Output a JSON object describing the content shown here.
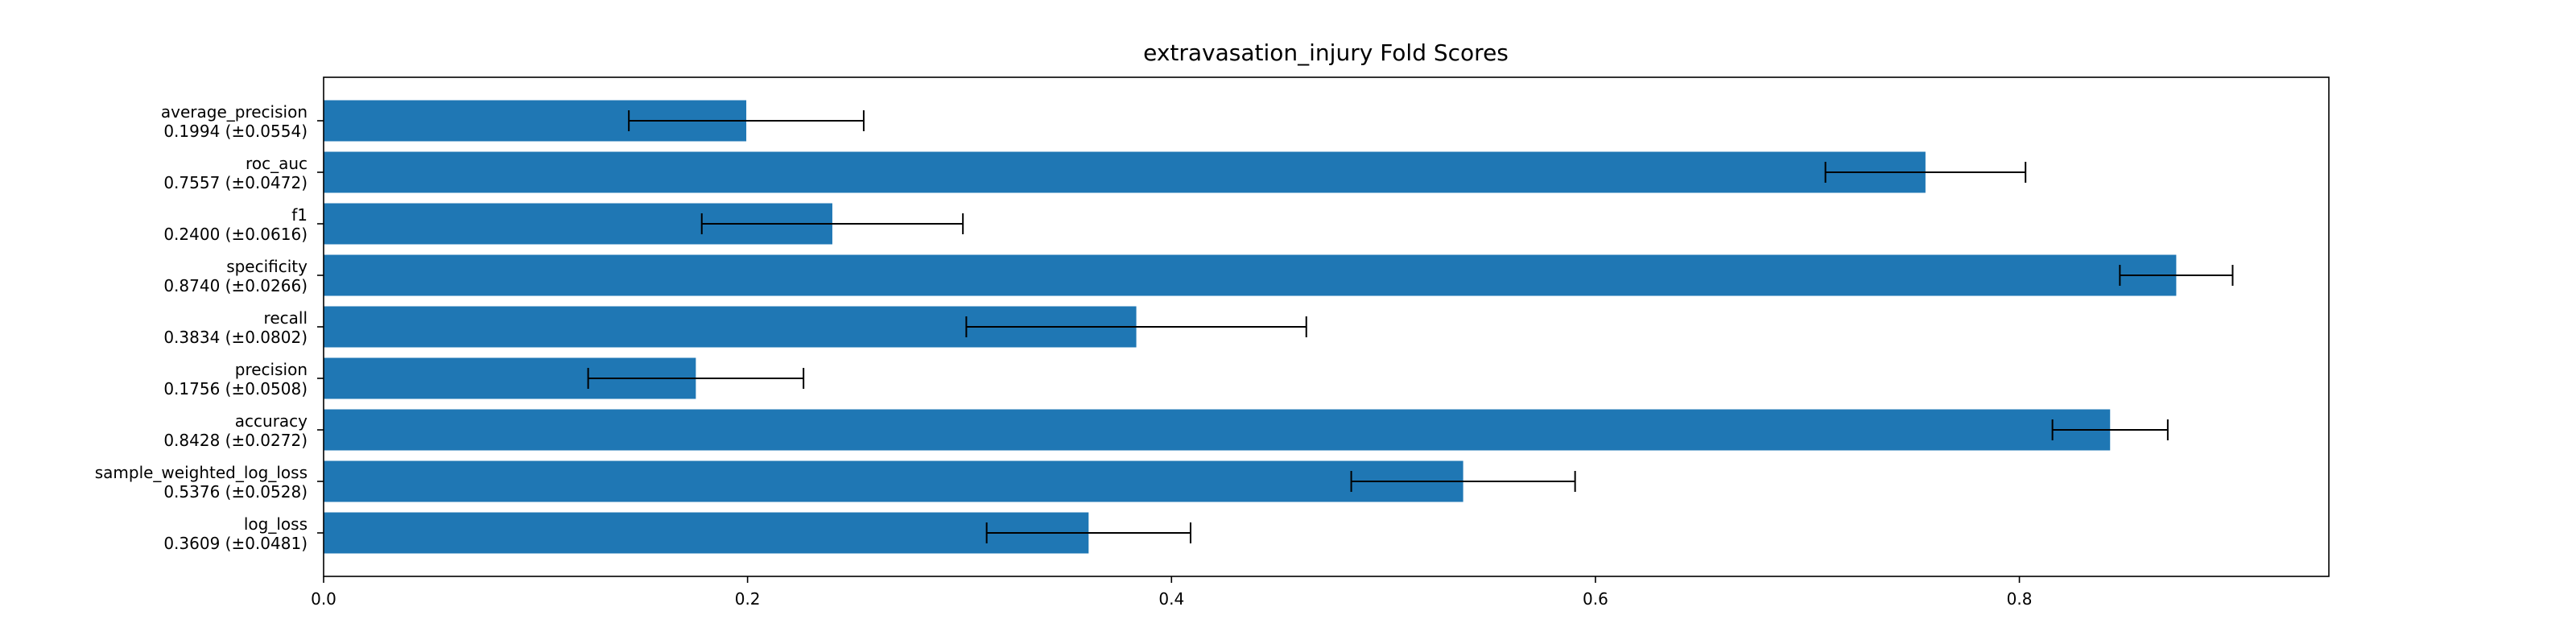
{
  "chart_data": {
    "type": "bar",
    "orientation": "horizontal",
    "title": "extravasation_injury Fold Scores",
    "xlabel": "",
    "ylabel": "",
    "xlim": [
      0,
      0.946
    ],
    "xticks": [
      0.0,
      0.2,
      0.4,
      0.6,
      0.8
    ],
    "xtick_labels": [
      "0.0",
      "0.2",
      "0.4",
      "0.6",
      "0.8"
    ],
    "grid": false,
    "bar_color": "#1f77b4",
    "error_color": "#000000",
    "categories": [
      {
        "name": "average_precision",
        "score_label": "0.1994 (±0.0554)",
        "value": 0.1994,
        "error": 0.0554
      },
      {
        "name": "roc_auc",
        "score_label": "0.7557 (±0.0472)",
        "value": 0.7557,
        "error": 0.0472
      },
      {
        "name": "f1",
        "score_label": "0.2400 (±0.0616)",
        "value": 0.24,
        "error": 0.0616
      },
      {
        "name": "specificity",
        "score_label": "0.8740 (±0.0266)",
        "value": 0.874,
        "error": 0.0266
      },
      {
        "name": "recall",
        "score_label": "0.3834 (±0.0802)",
        "value": 0.3834,
        "error": 0.0802
      },
      {
        "name": "precision",
        "score_label": "0.1756 (±0.0508)",
        "value": 0.1756,
        "error": 0.0508
      },
      {
        "name": "accuracy",
        "score_label": "0.8428 (±0.0272)",
        "value": 0.8428,
        "error": 0.0272
      },
      {
        "name": "sample_weighted_log_loss",
        "score_label": "0.5376 (±0.0528)",
        "value": 0.5376,
        "error": 0.0528
      },
      {
        "name": "log_loss",
        "score_label": "0.3609 (±0.0481)",
        "value": 0.3609,
        "error": 0.0481
      }
    ]
  }
}
